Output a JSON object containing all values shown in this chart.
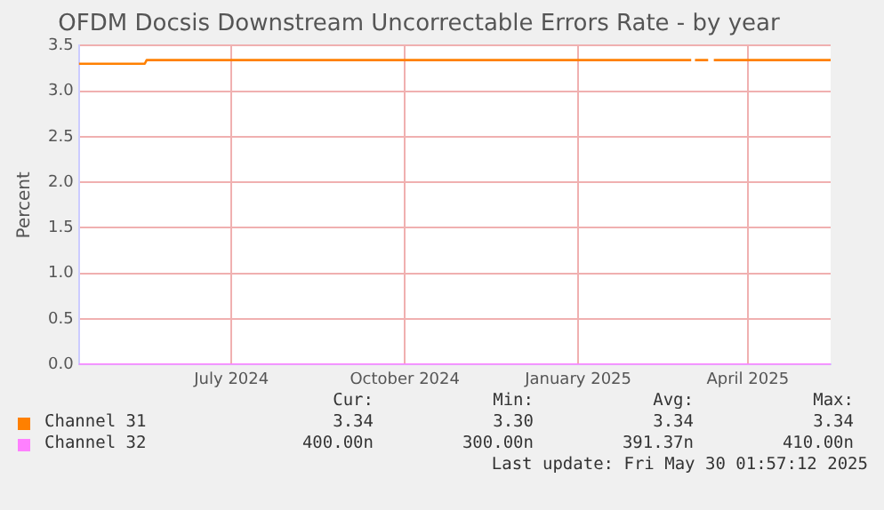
{
  "chart_data": {
    "type": "line",
    "title": "OFDM Docsis Downstream Uncorrectable Errors Rate - by year",
    "ylabel": "Percent",
    "x": [
      "2024-04-26",
      "2024-05-31",
      "2024-06-01",
      "2025-03-17",
      "2025-03-18",
      "2025-03-19",
      "2025-03-26",
      "2025-03-27",
      "2025-03-29",
      "2025-05-30"
    ],
    "series": [
      {
        "name": "Channel 31",
        "color": "#ff8000",
        "values": [
          3.3,
          3.3,
          3.34,
          3.34,
          null,
          3.34,
          3.34,
          null,
          3.34,
          3.34
        ]
      },
      {
        "name": "Channel 32",
        "color": "#ff80ff",
        "values": [
          4e-07,
          4e-07,
          4e-07,
          4e-07,
          4e-07,
          4e-07,
          4e-07,
          4e-07,
          4e-07,
          4e-07
        ]
      }
    ],
    "xlim": [
      "2024-04-26",
      "2025-05-30"
    ],
    "xticks": [
      {
        "value": "2024-07-16",
        "label": "July 2024"
      },
      {
        "value": "2024-10-16",
        "label": "October 2024"
      },
      {
        "value": "2025-01-16",
        "label": "January 2025"
      },
      {
        "value": "2025-04-16",
        "label": "April 2025"
      }
    ],
    "ylim": [
      0,
      3.5
    ],
    "yticks": [
      {
        "value": 0,
        "label": "0.0"
      },
      0.5,
      {
        "value": 1,
        "label": "1.0"
      },
      1.5,
      {
        "value": 2,
        "label": "2.0"
      },
      2.5,
      {
        "value": 3,
        "label": "3.0"
      },
      3.5
    ],
    "grid": true,
    "legend": "bottom",
    "marker": "none",
    "line_style": "solid",
    "annotations": [
      "Cur:",
      "Min:",
      "Avg:",
      "Max:",
      "3.34",
      "3.30",
      "3.34",
      "3.34",
      "400.00n",
      "300.00n",
      "391.37n",
      "410.00n",
      "Last update: Fri May 30 01:57:12 2025"
    ]
  }
}
